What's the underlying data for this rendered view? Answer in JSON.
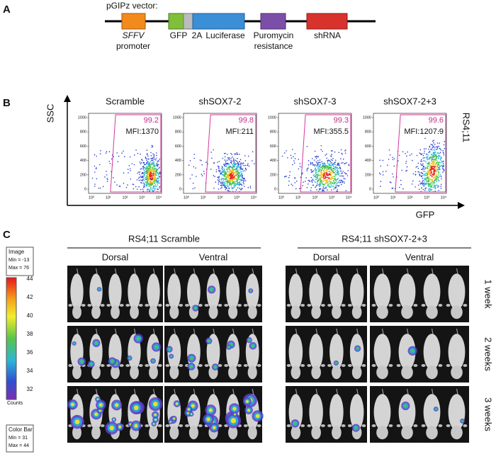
{
  "panel_a": {
    "label": "A",
    "title": "pGIPz vector:",
    "elements": [
      {
        "name": "SFFV",
        "caption": "promoter"
      },
      {
        "name": "GFP"
      },
      {
        "name": "2A"
      },
      {
        "name": "Luciferase"
      },
      {
        "name": "Puromycin",
        "caption": "resistance"
      },
      {
        "name": "shRNA"
      }
    ]
  },
  "panel_b": {
    "label": "B",
    "y_axis": "SSC",
    "x_axis": "GFP",
    "side_label": "RS4;11",
    "yticks": [
      "0",
      "200",
      "400",
      "600",
      "800",
      "1000"
    ],
    "xticks": [
      "10⁰",
      "10¹",
      "10²",
      "10³",
      "10⁴"
    ],
    "plots": [
      {
        "title": "Scramble",
        "gate": "99.2",
        "mfi": "MFI:1370"
      },
      {
        "title": "shSOX7-2",
        "gate": "99.8",
        "mfi": "MFI:211"
      },
      {
        "title": "shSOX7-3",
        "gate": "99.3",
        "mfi": "MFI:355.5"
      },
      {
        "title": "shSOX7-2+3",
        "gate": "99.6",
        "mfi": "MFI:1207.9"
      }
    ]
  },
  "panel_c": {
    "label": "C",
    "groups": [
      {
        "title": "RS4;11 Scramble",
        "views": [
          "Dorsal",
          "Ventral"
        ]
      },
      {
        "title": "RS4;11 shSOX7-2+3",
        "views": [
          "Dorsal",
          "Ventral"
        ]
      }
    ],
    "rows": [
      "1 week",
      "2 weeks",
      "3 weeks"
    ],
    "image_box": {
      "title": "Image",
      "min": "Min = -13",
      "max": "Max = 76"
    },
    "colorbar_ticks": [
      "44",
      "42",
      "40",
      "38",
      "36",
      "34",
      "32"
    ],
    "colorbar_unit": "Counts",
    "colorbar_box": {
      "title": "Color Bar",
      "min": "Min = 31",
      "max": "Max = 44"
    }
  }
}
